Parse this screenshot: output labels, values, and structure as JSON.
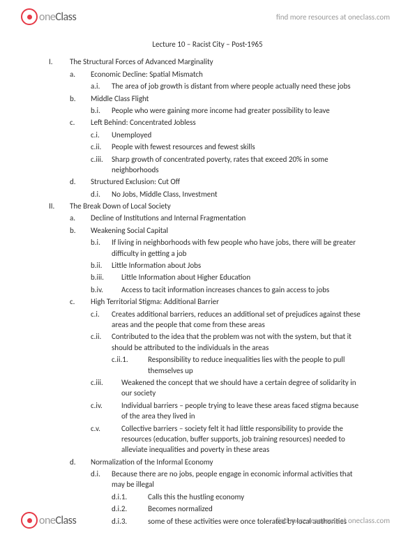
{
  "brand": {
    "one": "one",
    "class": "Class"
  },
  "tagline": "find more resources at oneclass.com",
  "title": "Lecture 10 – Racist City – Post-1965",
  "outline": {
    "I": "The Structural Forces of Advanced Marginality",
    "Ia": "Economic Decline: Spatial Mismatch",
    "Iai": "The area of job growth is distant from where people actually need these jobs",
    "Ib": "Middle Class Flight",
    "Ibi": "People who were gaining more income had greater possibility to leave",
    "Ic": "Left Behind: Concentrated Jobless",
    "Ici": "Unemployed",
    "Icii": "People with fewest resources and fewest skills",
    "Iciii": "Sharp growth of concentrated poverty, rates that exceed 20% in some neighborhoods",
    "Id": "Structured Exclusion: Cut Off",
    "Idi": "No Jobs, Middle Class, Investment",
    "II": "The Break Down of Local Society",
    "IIa": "Decline of Institutions and Internal Fragmentation",
    "IIb": "Weakening Social Capital",
    "IIbi": "If living in neighborhoods with few people who have jobs, there will be greater difficulty in getting a job",
    "IIbii": "Little Information about Jobs",
    "IIbiii": "Little Information about Higher Education",
    "IIbiv": "Access to tacit information increases chances to gain access to jobs",
    "IIc": "High Territorial Stigma: Additional Barrier",
    "IIci": "Creates additional barriers, reduces an additional set of prejudices against these areas and the people that come from these areas",
    "IIcii": "Contributed to the idea that the problem was not with the system, but that it should be attributed to the individuals in the areas",
    "IIcii1": "Responsibility to reduce inequalities lies with the people to pull themselves up",
    "IIciii": "Weakened the concept that we should have a certain degree of solidarity in our society",
    "IIciv": "Individual barriers – people trying to leave these areas faced stigma because of the area they lived in",
    "IIcv": "Collective barriers – society felt it had little responsibility to provide the resources (education, buffer supports, job training resources) needed to alleviate inequalities and poverty in these areas",
    "IId": "Normalization of the Informal Economy",
    "IIdi": "Because there are no jobs, people engage in economic informal activities that may be illegal",
    "IIdi1": "Calls this the hustling economy",
    "IIdi2": "Becomes normalized",
    "IIdi3": "some of these activities were once tolerated by local authorities"
  },
  "m": {
    "I": "I.",
    "II": "II.",
    "a": "a.",
    "b": "b.",
    "c": "c.",
    "d": "d.",
    "ai": "a.i.",
    "bi": "b.i.",
    "ci": "c.i.",
    "cii": "c.ii.",
    "ciii": "c.iii.",
    "di": "d.i.",
    "bii": "b.ii.",
    "biii": "b.iii.",
    "biv": "b.iv.",
    "cii1": "c.ii.1.",
    "civ": "c.iv.",
    "cv": "c.v.",
    "di1": "d.i.1.",
    "di2": "d.i.2.",
    "di3": "d.i.3."
  }
}
